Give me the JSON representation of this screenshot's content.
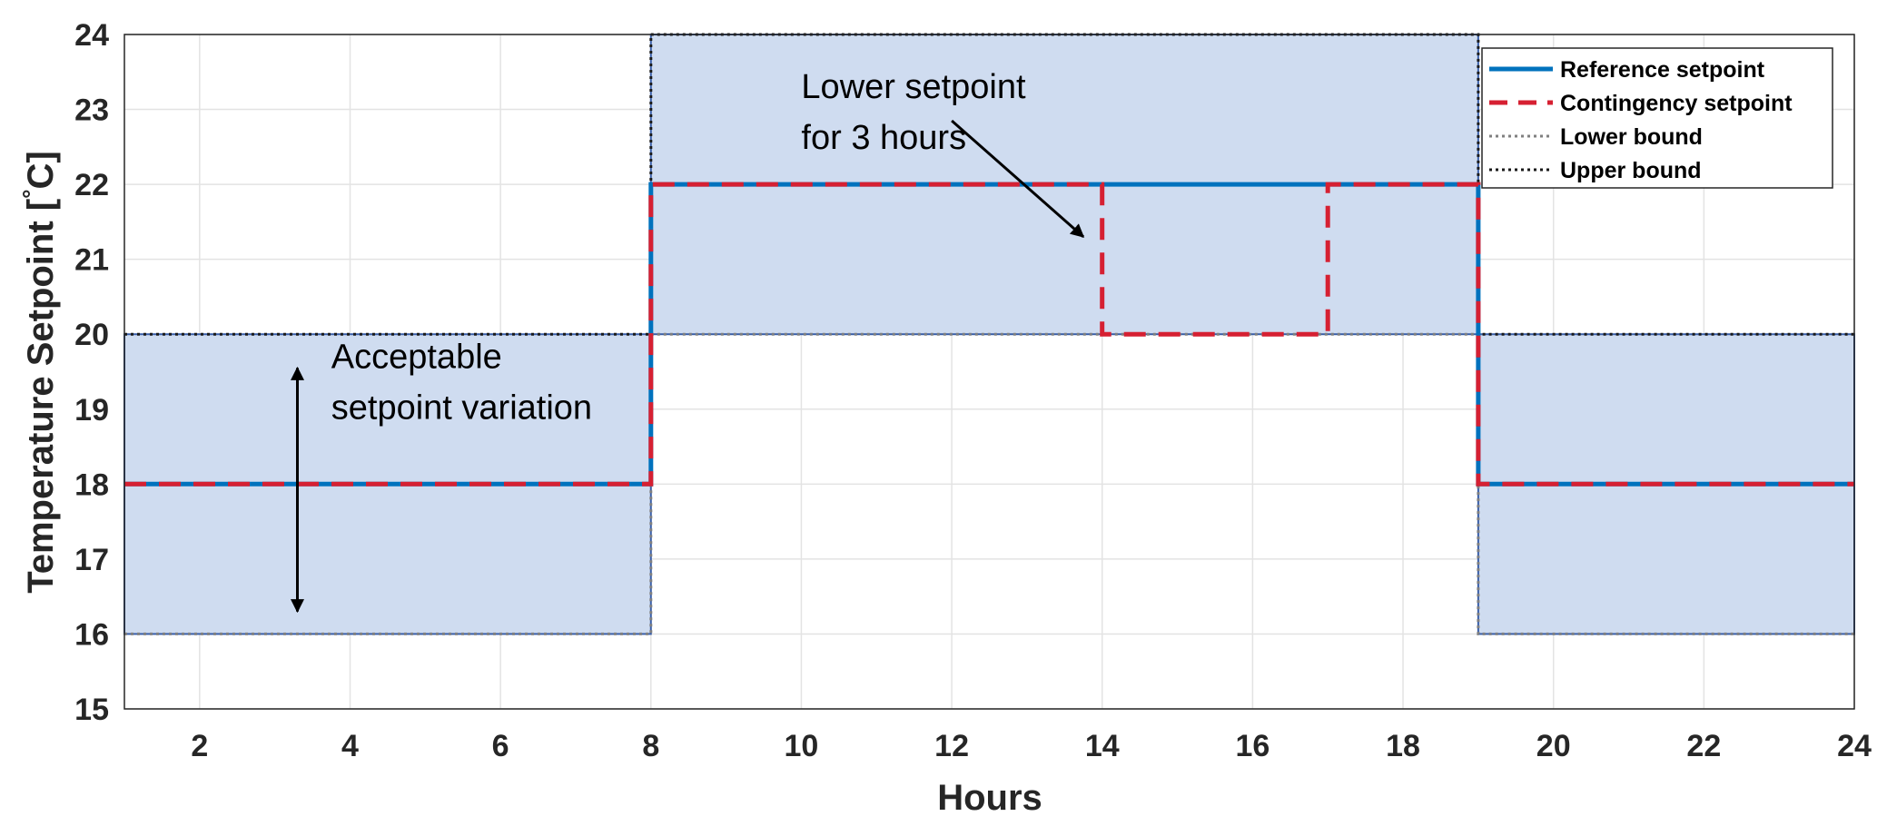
{
  "chart_data": {
    "type": "line",
    "xlabel": "Hours",
    "ylabel": "Temperature Setpoint [°C]",
    "ylabel_main": "Temperature Setpoint [",
    "ylabel_degree": "°",
    "ylabel_unit": "C]",
    "xlim": [
      1,
      24
    ],
    "ylim": [
      15,
      24
    ],
    "xticks": [
      2,
      4,
      6,
      8,
      10,
      12,
      14,
      16,
      18,
      20,
      22,
      24
    ],
    "yticks": [
      15,
      16,
      17,
      18,
      19,
      20,
      21,
      22,
      23,
      24
    ],
    "grid": true,
    "legend_position": "top-right",
    "series": [
      {
        "name": "Reference setpoint",
        "style": "solid",
        "color": "#0072BD",
        "points": [
          [
            1,
            18
          ],
          [
            8,
            18
          ],
          [
            8,
            22
          ],
          [
            19,
            22
          ],
          [
            19,
            18
          ],
          [
            24,
            18
          ]
        ]
      },
      {
        "name": "Contingency setpoint",
        "style": "dashed",
        "color": "#D62032",
        "points": [
          [
            1,
            18
          ],
          [
            8,
            18
          ],
          [
            8,
            22
          ],
          [
            14,
            22
          ],
          [
            14,
            20
          ],
          [
            17,
            20
          ],
          [
            17,
            22
          ],
          [
            19,
            22
          ],
          [
            19,
            18
          ],
          [
            24,
            18
          ]
        ]
      },
      {
        "name": "Lower bound",
        "style": "dotted",
        "color": "#808080",
        "points": [
          [
            1,
            16
          ],
          [
            8,
            16
          ],
          [
            8,
            20
          ],
          [
            19,
            20
          ],
          [
            19,
            16
          ],
          [
            24,
            16
          ]
        ]
      },
      {
        "name": "Upper bound",
        "style": "dotted",
        "color": "#1a1a1a",
        "points": [
          [
            1,
            20
          ],
          [
            8,
            20
          ],
          [
            8,
            24
          ],
          [
            19,
            24
          ],
          [
            19,
            20
          ],
          [
            24,
            20
          ]
        ]
      }
    ],
    "band": {
      "fill": "#cfdcf0",
      "edge": "#3a5fa8",
      "regions": [
        {
          "x": [
            1,
            8
          ],
          "y": [
            16,
            20
          ]
        },
        {
          "x": [
            8,
            19
          ],
          "y": [
            20,
            24
          ]
        },
        {
          "x": [
            19,
            24
          ],
          "y": [
            16,
            20
          ]
        }
      ]
    },
    "annotations": [
      {
        "id": "acceptable",
        "lines": [
          "Acceptable",
          "setpoint variation"
        ],
        "text_pos": [
          3.75,
          19.55
        ],
        "arrow": {
          "type": "double",
          "x": 3.3,
          "y1": 16.3,
          "y2": 19.55
        }
      },
      {
        "id": "lower",
        "lines": [
          "Lower setpoint",
          "for 3 hours"
        ],
        "text_pos": [
          10.0,
          23.15
        ],
        "arrow": {
          "type": "single",
          "from": [
            12.0,
            22.85
          ],
          "to": [
            13.75,
            21.3
          ]
        }
      }
    ]
  }
}
